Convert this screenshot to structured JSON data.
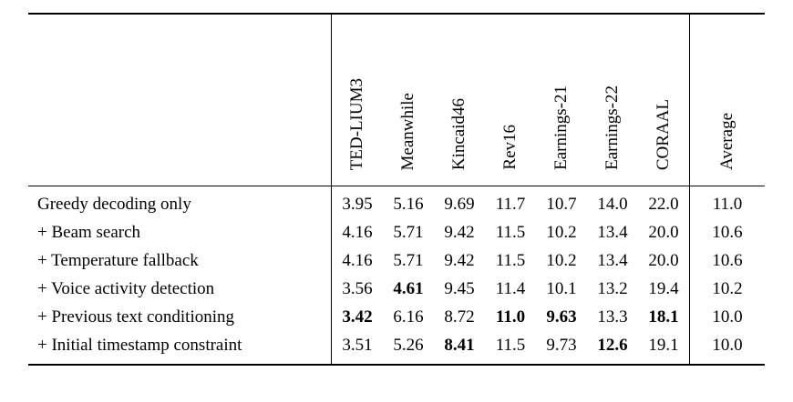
{
  "table": {
    "columns": [
      "TED-LIUM3",
      "Meanwhile",
      "Kincaid46",
      "Rev16",
      "Earnings-21",
      "Earnings-22",
      "CORAAL",
      "Average"
    ],
    "rows": [
      {
        "label": "Greedy decoding only",
        "values": [
          "3.95",
          "5.16",
          "9.69",
          "11.7",
          "10.7",
          "14.0",
          "22.0",
          "11.0"
        ],
        "bold": []
      },
      {
        "label": "+ Beam search",
        "values": [
          "4.16",
          "5.71",
          "9.42",
          "11.5",
          "10.2",
          "13.4",
          "20.0",
          "10.6"
        ],
        "bold": []
      },
      {
        "label": "+ Temperature fallback",
        "values": [
          "4.16",
          "5.71",
          "9.42",
          "11.5",
          "10.2",
          "13.4",
          "20.0",
          "10.6"
        ],
        "bold": []
      },
      {
        "label": "+ Voice activity detection",
        "values": [
          "3.56",
          "4.61",
          "9.45",
          "11.4",
          "10.1",
          "13.2",
          "19.4",
          "10.2"
        ],
        "bold": [
          1
        ]
      },
      {
        "label": "+ Previous text conditioning",
        "values": [
          "3.42",
          "6.16",
          "8.72",
          "11.0",
          "9.63",
          "13.3",
          "18.1",
          "10.0"
        ],
        "bold": [
          0,
          3,
          4,
          6
        ]
      },
      {
        "label": "+ Initial timestamp constraint",
        "values": [
          "3.51",
          "5.26",
          "8.41",
          "11.5",
          "9.73",
          "12.6",
          "19.1",
          "10.0"
        ],
        "bold": [
          2,
          5
        ]
      }
    ]
  },
  "chart_data": {
    "type": "table",
    "title": "",
    "columns": [
      "TED-LIUM3",
      "Meanwhile",
      "Kincaid46",
      "Rev16",
      "Earnings-21",
      "Earnings-22",
      "CORAAL",
      "Average"
    ],
    "row_labels": [
      "Greedy decoding only",
      "+ Beam search",
      "+ Temperature fallback",
      "+ Voice activity detection",
      "+ Previous text conditioning",
      "+ Initial timestamp constraint"
    ],
    "values": [
      [
        3.95,
        5.16,
        9.69,
        11.7,
        10.7,
        14.0,
        22.0,
        11.0
      ],
      [
        4.16,
        5.71,
        9.42,
        11.5,
        10.2,
        13.4,
        20.0,
        10.6
      ],
      [
        4.16,
        5.71,
        9.42,
        11.5,
        10.2,
        13.4,
        20.0,
        10.6
      ],
      [
        3.56,
        4.61,
        9.45,
        11.4,
        10.1,
        13.2,
        19.4,
        10.2
      ],
      [
        3.42,
        6.16,
        8.72,
        11.0,
        9.63,
        13.3,
        18.1,
        10.0
      ],
      [
        3.51,
        5.26,
        8.41,
        11.5,
        9.73,
        12.6,
        19.1,
        10.0
      ]
    ]
  }
}
